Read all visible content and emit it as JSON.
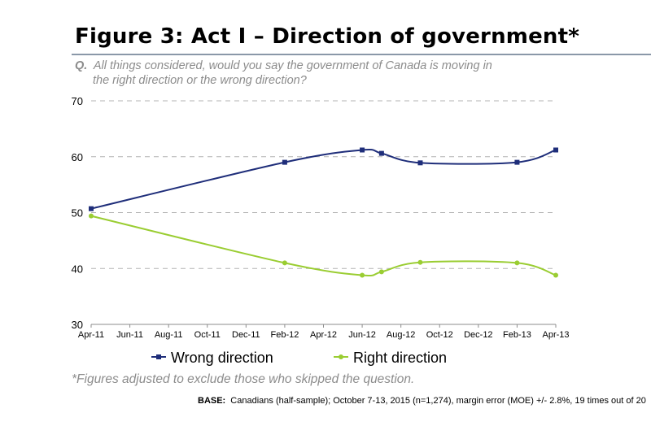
{
  "title": "Figure 3: Act I – Direction of government*",
  "question": {
    "label": "Q.",
    "line1": "All things considered, would you say the government of Canada is moving in",
    "line2": "the right direction or the wrong direction?"
  },
  "note": "*Figures adjusted to exclude those who skipped the question.",
  "base": {
    "label": "BASE:",
    "text": "Canadians (half-sample); October 7-13, 2015 (n=1,274), margin error (MOE) +/- 2.8%, 19 times out of 20"
  },
  "chart_data": {
    "type": "line",
    "x_tick_labels": [
      "Apr-11",
      "Jun-11",
      "Aug-11",
      "Oct-11",
      "Dec-11",
      "Feb-12",
      "Apr-12",
      "Jun-12",
      "Aug-12",
      "Oct-12",
      "Dec-12",
      "Feb-13",
      "Apr-13"
    ],
    "ylim": [
      30,
      70
    ],
    "yticks": [
      30,
      40,
      50,
      60,
      70
    ],
    "grid": "horizontal-dashed",
    "legend_position": "bottom",
    "series": [
      {
        "name": "Wrong direction",
        "color": "#1f2e7a",
        "marker": "square",
        "points": [
          {
            "x": "Apr-11",
            "y": 50.7
          },
          {
            "x": "Feb-12",
            "y": 59.0
          },
          {
            "x": "Jun-12",
            "y": 61.2
          },
          {
            "x": "Jul-12",
            "y": 60.6
          },
          {
            "x": "Sep-12",
            "y": 58.9
          },
          {
            "x": "Feb-13",
            "y": 59.0
          },
          {
            "x": "Apr-13",
            "y": 61.2
          }
        ]
      },
      {
        "name": "Right direction",
        "color": "#9acd32",
        "marker": "circle",
        "points": [
          {
            "x": "Apr-11",
            "y": 49.4
          },
          {
            "x": "Feb-12",
            "y": 41.0
          },
          {
            "x": "Jun-12",
            "y": 38.8
          },
          {
            "x": "Jul-12",
            "y": 39.4
          },
          {
            "x": "Sep-12",
            "y": 41.1
          },
          {
            "x": "Feb-13",
            "y": 41.0
          },
          {
            "x": "Apr-13",
            "y": 38.8
          }
        ]
      }
    ]
  }
}
